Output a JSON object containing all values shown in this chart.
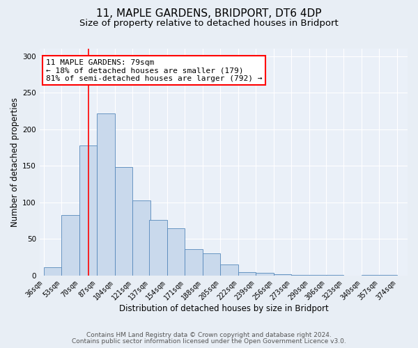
{
  "title": "11, MAPLE GARDENS, BRIDPORT, DT6 4DP",
  "subtitle": "Size of property relative to detached houses in Bridport",
  "xlabel": "Distribution of detached houses by size in Bridport",
  "ylabel": "Number of detached properties",
  "bar_left_edges": [
    36,
    53,
    70,
    87,
    104,
    121,
    137,
    154,
    171,
    188,
    205,
    222,
    239,
    256,
    273,
    290,
    306,
    323,
    340,
    357
  ],
  "bar_heights": [
    11,
    83,
    178,
    222,
    148,
    103,
    76,
    65,
    36,
    30,
    15,
    5,
    4,
    2,
    1,
    1,
    1,
    0,
    1,
    1
  ],
  "bin_width": 17,
  "bar_facecolor": "#c9d9ec",
  "bar_edgecolor": "#5588bb",
  "tick_labels": [
    "36sqm",
    "53sqm",
    "70sqm",
    "87sqm",
    "104sqm",
    "121sqm",
    "137sqm",
    "154sqm",
    "171sqm",
    "188sqm",
    "205sqm",
    "222sqm",
    "239sqm",
    "256sqm",
    "273sqm",
    "290sqm",
    "306sqm",
    "323sqm",
    "340sqm",
    "357sqm",
    "374sqm"
  ],
  "tick_positions": [
    36,
    53,
    70,
    87,
    104,
    121,
    137,
    154,
    171,
    188,
    205,
    222,
    239,
    256,
    273,
    290,
    306,
    323,
    340,
    357,
    374
  ],
  "red_line_x": 79,
  "ylim": [
    0,
    310
  ],
  "yticks": [
    0,
    50,
    100,
    150,
    200,
    250,
    300
  ],
  "annotation_title": "11 MAPLE GARDENS: 79sqm",
  "annotation_line1": "← 18% of detached houses are smaller (179)",
  "annotation_line2": "81% of semi-detached houses are larger (792) →",
  "background_color": "#e8eef5",
  "plot_background_color": "#eaf0f8",
  "footer_line1": "Contains HM Land Registry data © Crown copyright and database right 2024.",
  "footer_line2": "Contains public sector information licensed under the Open Government Licence v3.0.",
  "grid_color": "#ffffff",
  "title_fontsize": 11,
  "subtitle_fontsize": 9.5,
  "axis_label_fontsize": 8.5,
  "tick_fontsize": 7,
  "annotation_fontsize": 8,
  "footer_fontsize": 6.5
}
